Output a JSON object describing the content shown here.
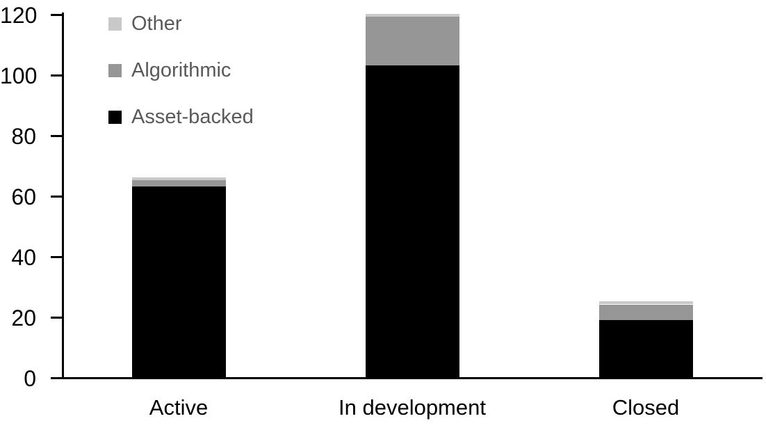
{
  "chart_data": {
    "type": "bar",
    "stacked": true,
    "title": "",
    "xlabel": "",
    "ylabel": "",
    "categories": [
      "Active",
      "In development",
      "Closed"
    ],
    "series": [
      {
        "name": "Asset-backed",
        "color": "#000000",
        "values": [
          63,
          103,
          19
        ]
      },
      {
        "name": "Algorithmic",
        "color": "#969696",
        "values": [
          2,
          16,
          5
        ]
      },
      {
        "name": "Other",
        "color": "#c9c9c9",
        "values": [
          1,
          1,
          1
        ]
      }
    ],
    "ylim": [
      0,
      120
    ],
    "ytick_step": 20,
    "ytick_labels": [
      "0",
      "20",
      "40",
      "60",
      "80",
      "100",
      "120"
    ],
    "grid": false,
    "legend": {
      "position": "top-left",
      "order_top_to_bottom": [
        "Other",
        "Algorithmic",
        "Asset-backed"
      ],
      "text_color": "#595959"
    },
    "axis_color": "#000000",
    "background_color": "#ffffff"
  }
}
